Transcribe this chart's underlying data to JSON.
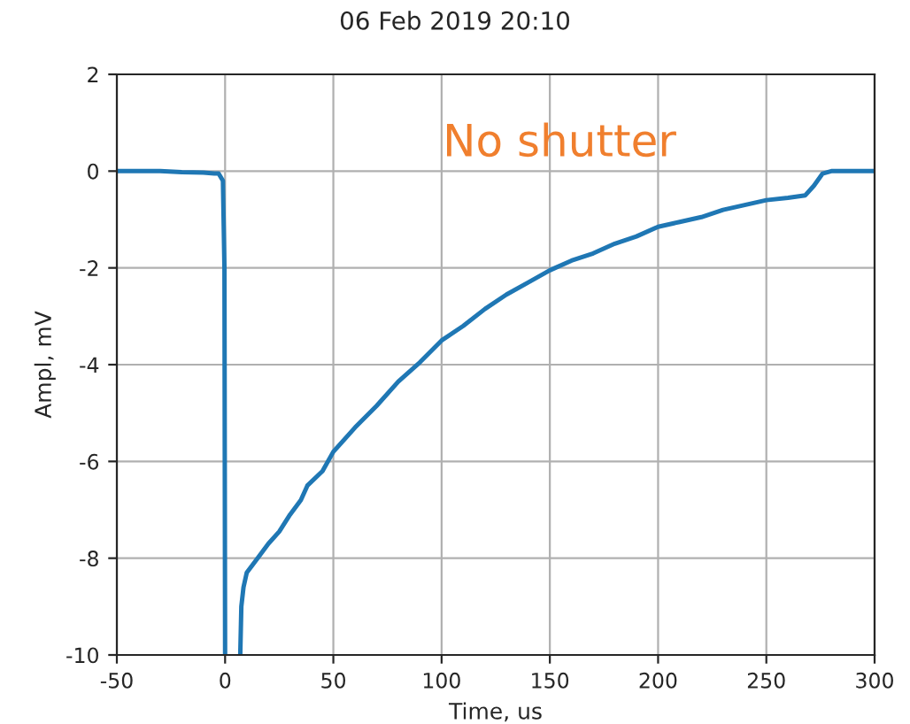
{
  "chart_data": {
    "type": "line",
    "title": "06 Feb 2019 20:10",
    "xlabel": "Time, us",
    "ylabel": "Ampl, mV",
    "annotations": [
      "No shutter"
    ],
    "series": [
      {
        "color": "#1f77b4",
        "x": [
          -50,
          -40,
          -30,
          -20,
          -10,
          -5,
          -3,
          -1,
          -0.3,
          0,
          3,
          7,
          7.5,
          8.5,
          10,
          15,
          20,
          25,
          30,
          35,
          38,
          45,
          50,
          60,
          70,
          80,
          90,
          100,
          110,
          120,
          130,
          140,
          150,
          160,
          170,
          180,
          190,
          200,
          210,
          220,
          230,
          240,
          250,
          260,
          268,
          272,
          276,
          280,
          290,
          300
        ],
        "values": [
          0.0,
          0.0,
          0.0,
          -0.02,
          -0.03,
          -0.05,
          -0.05,
          -0.2,
          -2,
          -10,
          null,
          -10,
          -9,
          -8.6,
          -8.3,
          -8.0,
          -7.7,
          -7.45,
          -7.1,
          -6.8,
          -6.5,
          -6.2,
          -5.8,
          -5.3,
          -4.85,
          -4.35,
          -3.95,
          -3.5,
          -3.2,
          -2.85,
          -2.55,
          -2.3,
          -2.05,
          -1.85,
          -1.7,
          -1.5,
          -1.35,
          -1.15,
          -1.05,
          -0.95,
          -0.8,
          -0.7,
          -0.6,
          -0.55,
          -0.5,
          -0.3,
          -0.05,
          0.0,
          0.0,
          0.0
        ]
      }
    ],
    "xlim": [
      -50,
      300
    ],
    "xticks": [
      -50,
      0,
      50,
      100,
      150,
      200,
      250,
      300
    ],
    "ylim": [
      -10,
      2
    ],
    "yticks": [
      -10,
      -8,
      -6,
      -4,
      -2,
      0,
      2
    ],
    "grid": true,
    "marker": "none",
    "line_style": "solid"
  }
}
